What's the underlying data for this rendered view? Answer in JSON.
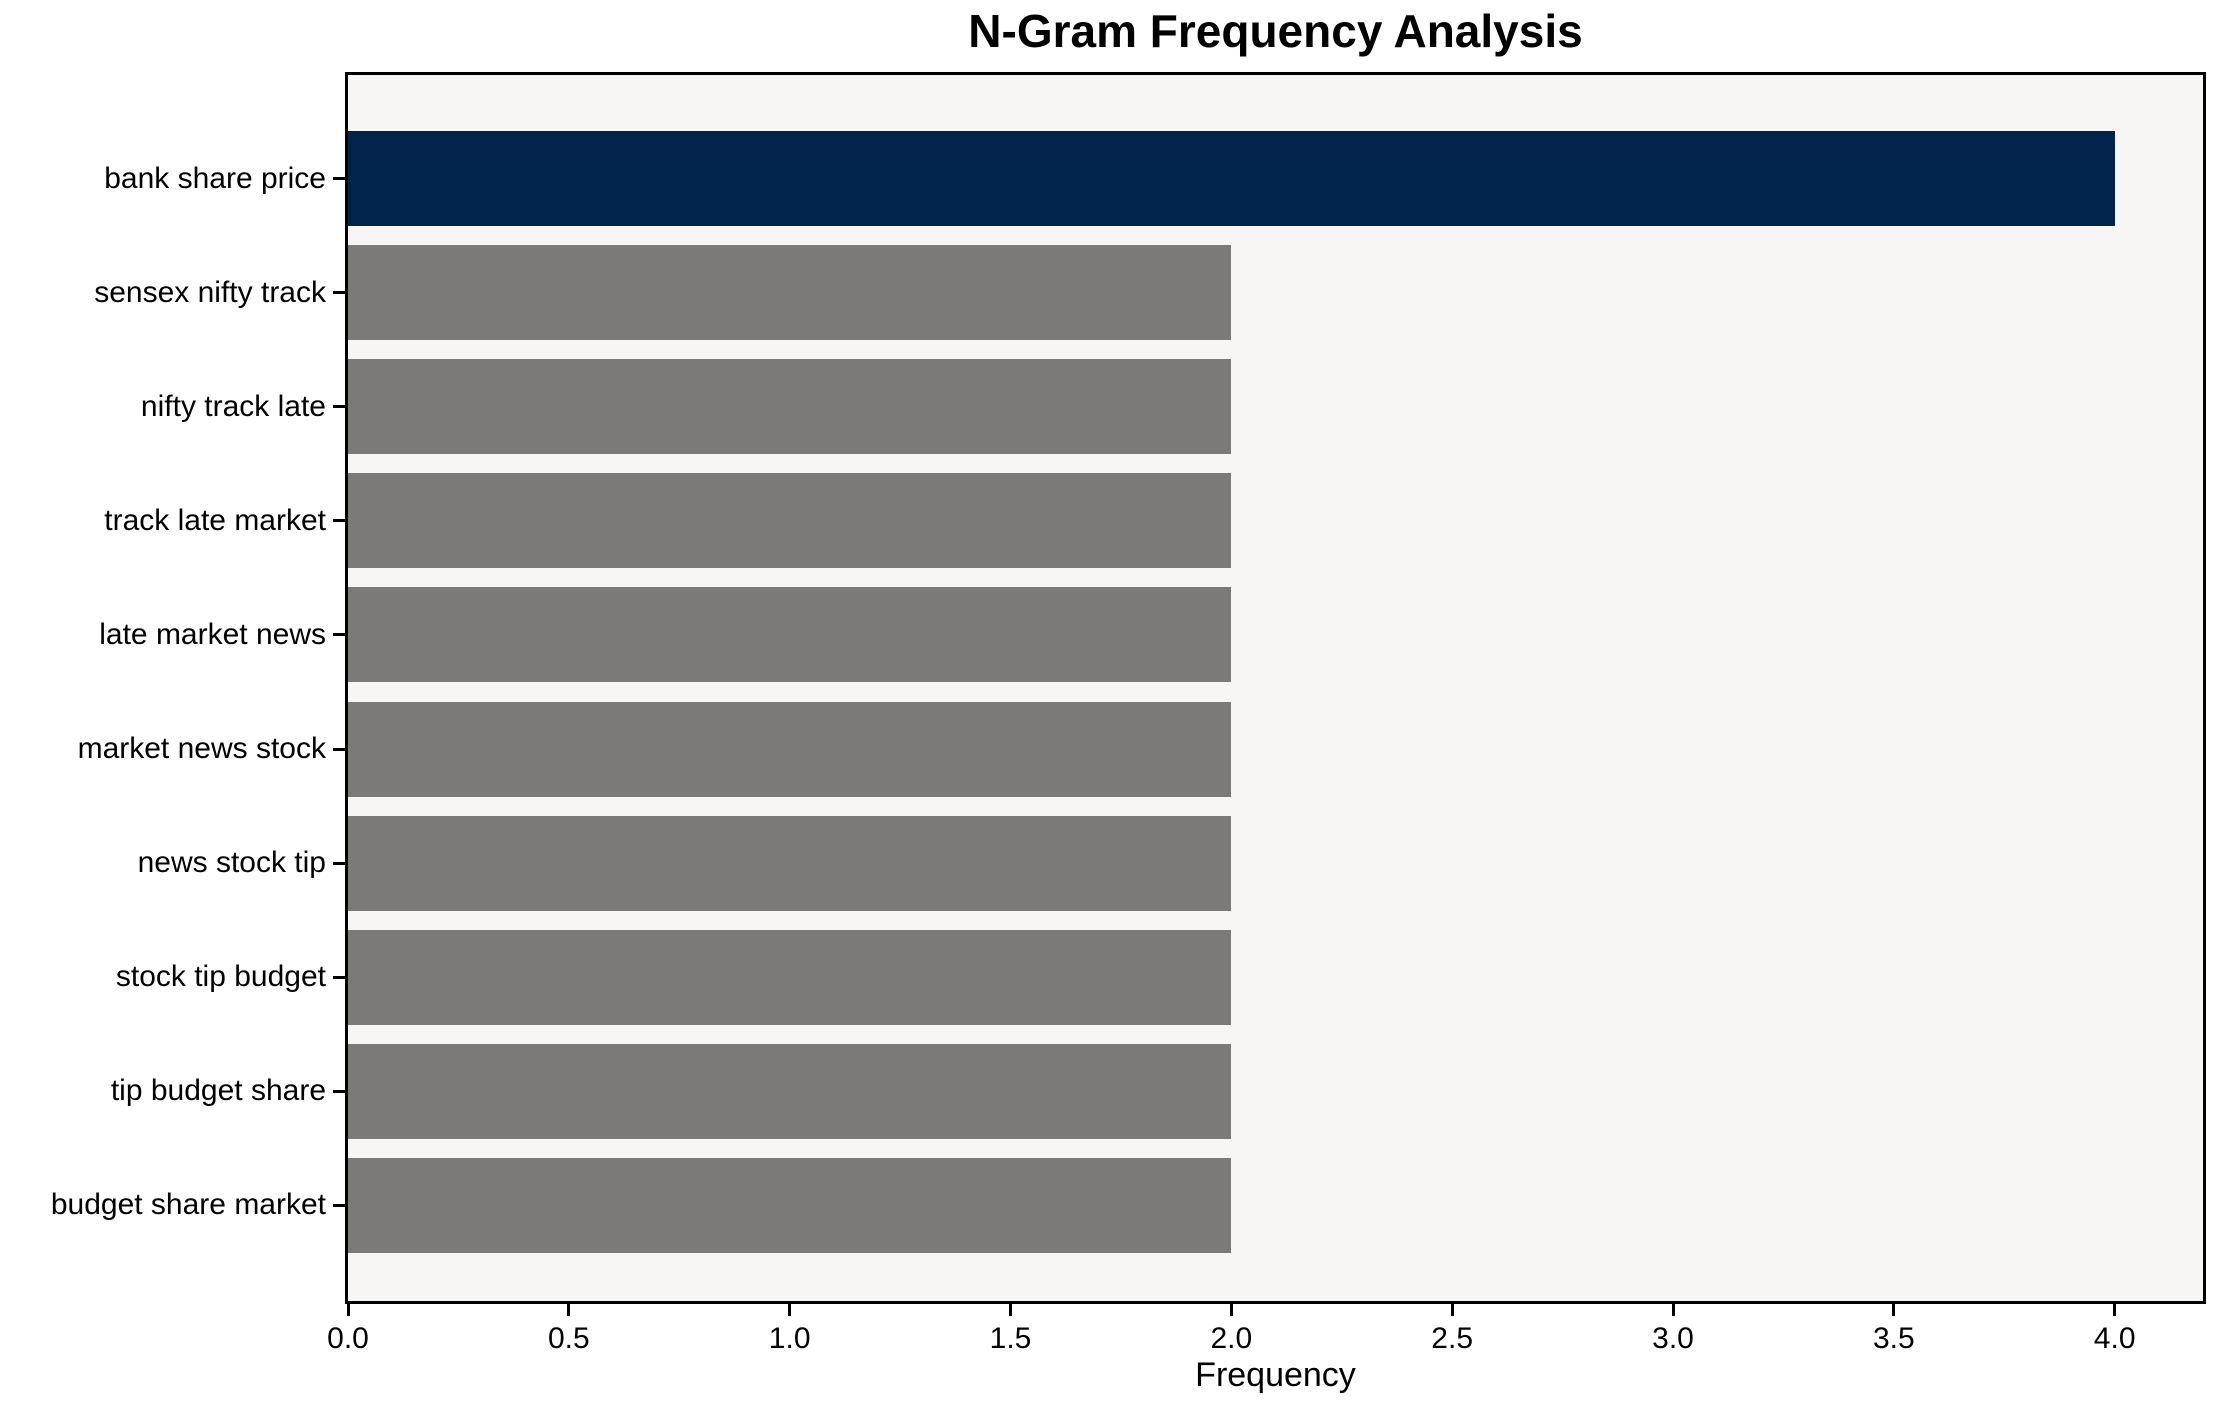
{
  "chart_data": {
    "type": "bar",
    "orientation": "horizontal",
    "title": "N-Gram Frequency Analysis",
    "xlabel": "Frequency",
    "ylabel": "",
    "categories": [
      "bank share price",
      "sensex nifty track",
      "nifty track late",
      "track late market",
      "late market news",
      "market news stock",
      "news stock tip",
      "stock tip budget",
      "tip budget share",
      "budget share market"
    ],
    "values": [
      4,
      2,
      2,
      2,
      2,
      2,
      2,
      2,
      2,
      2
    ],
    "bar_colors": [
      "#02234c",
      "#7b7a77",
      "#7b7a77",
      "#7b7a77",
      "#7b7a77",
      "#7b7a77",
      "#7b7a77",
      "#7b7a77",
      "#7b7a77",
      "#7b7a77"
    ],
    "xlim": [
      0,
      4.2
    ],
    "xticks": [
      0.0,
      0.5,
      1.0,
      1.5,
      2.0,
      2.5,
      3.0,
      3.5,
      4.0
    ],
    "xtick_labels": [
      "0.0",
      "0.5",
      "1.0",
      "1.5",
      "2.0",
      "2.5",
      "3.0",
      "3.5",
      "4.0"
    ],
    "grid": false,
    "legend": false,
    "colors": {
      "highlight_bar": "#02234c",
      "default_bar": "#7b7a77",
      "plot_background": "#f7f6f4",
      "figure_background": "#ffffff",
      "axis_frame": "#000000",
      "text": "#000000"
    }
  }
}
